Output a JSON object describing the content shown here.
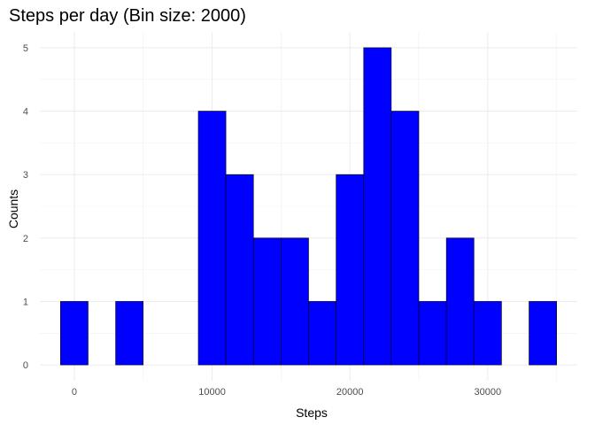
{
  "chart_data": {
    "type": "bar",
    "title": "Steps per day (Bin size: 2000)",
    "xlabel": "Steps",
    "ylabel": "Counts",
    "bin_width": 2000,
    "bins": [
      {
        "x": 0,
        "count": 1
      },
      {
        "x": 2000,
        "count": 0
      },
      {
        "x": 4000,
        "count": 1
      },
      {
        "x": 6000,
        "count": 0
      },
      {
        "x": 8000,
        "count": 0
      },
      {
        "x": 10000,
        "count": 4
      },
      {
        "x": 12000,
        "count": 3
      },
      {
        "x": 14000,
        "count": 2
      },
      {
        "x": 16000,
        "count": 2
      },
      {
        "x": 18000,
        "count": 1
      },
      {
        "x": 20000,
        "count": 3
      },
      {
        "x": 22000,
        "count": 5
      },
      {
        "x": 24000,
        "count": 4
      },
      {
        "x": 26000,
        "count": 1
      },
      {
        "x": 28000,
        "count": 2
      },
      {
        "x": 30000,
        "count": 1
      },
      {
        "x": 32000,
        "count": 0
      },
      {
        "x": 34000,
        "count": 1
      }
    ],
    "x_ticks": [
      0,
      10000,
      20000,
      30000
    ],
    "y_ticks": [
      0,
      1,
      2,
      3,
      4,
      5
    ],
    "xlim": [
      -2500,
      36500
    ],
    "ylim": [
      -0.25,
      5.25
    ],
    "bar_fill": "#0000ff",
    "bar_outline": "#000000",
    "grid": true,
    "theme": "minimal"
  }
}
